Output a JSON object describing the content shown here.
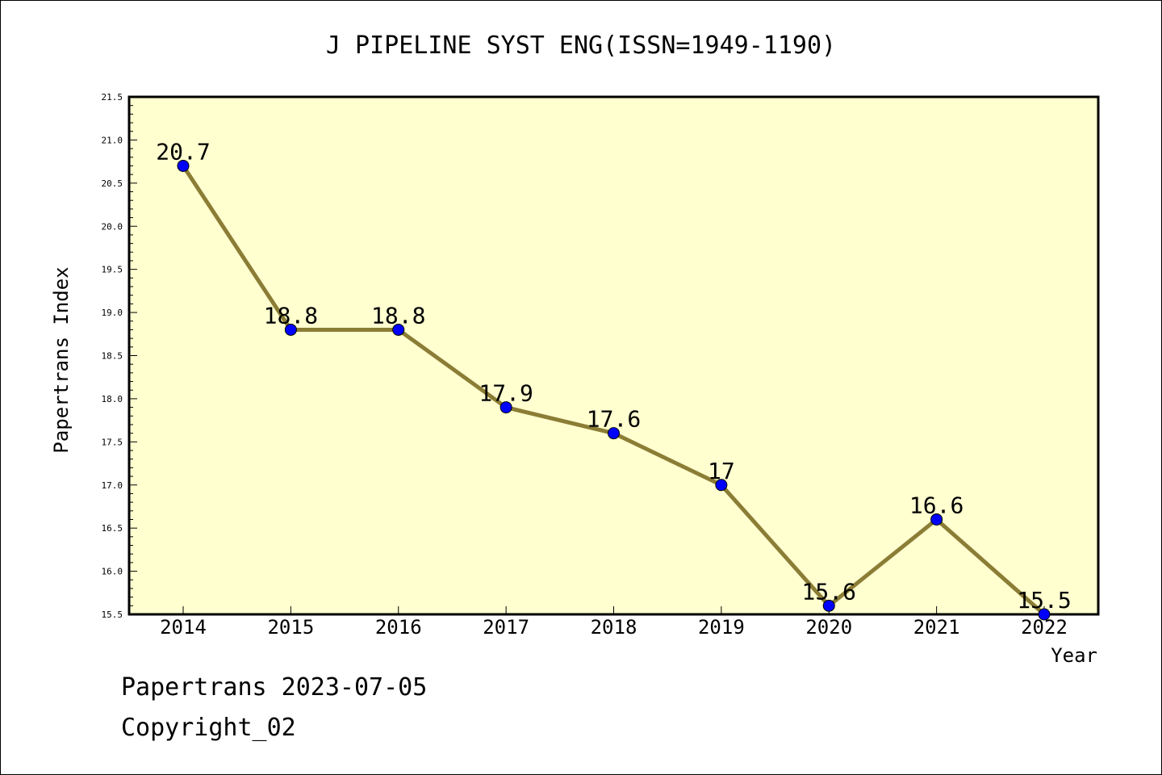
{
  "chart_data": {
    "type": "line",
    "title": "J PIPELINE SYST ENG(ISSN=1949-1190)",
    "xlabel": "Year",
    "ylabel": "Papertrans Index",
    "categories": [
      "2014",
      "2015",
      "2016",
      "2017",
      "2018",
      "2019",
      "2020",
      "2021",
      "2022"
    ],
    "series": [
      {
        "values": [
          20.7,
          18.8,
          18.8,
          17.9,
          17.6,
          17.0,
          15.6,
          16.6,
          15.5
        ],
        "data_labels": [
          "20.7",
          "18.8",
          "18.8",
          "17.9",
          "17.6",
          "17",
          "15.6",
          "16.6",
          "15.5"
        ]
      }
    ],
    "ylim": [
      15.5,
      21.5
    ],
    "yticks": [
      "15.5",
      "16.0",
      "16.5",
      "17.0",
      "17.5",
      "18.0",
      "18.5",
      "19.0",
      "19.5",
      "20.0",
      "20.5",
      "21.0",
      "21.5"
    ],
    "grid": false,
    "colors": {
      "plot_background": "#ffffd0",
      "line": "#8b7d35",
      "marker": "#0000ff"
    }
  },
  "footer": {
    "line1": "Papertrans 2023-07-05",
    "line2": "Copyright_02"
  }
}
